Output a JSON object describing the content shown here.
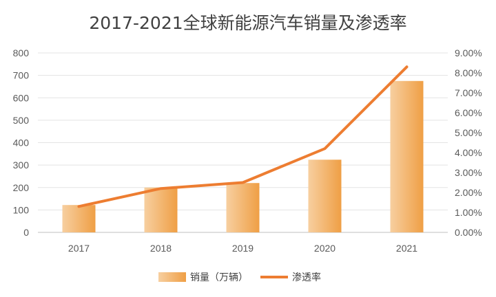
{
  "chart_data": {
    "type": "bar",
    "title": "2017-2021全球新能源汽车销量及渗透率",
    "categories": [
      "2017",
      "2018",
      "2019",
      "2020",
      "2021"
    ],
    "series": [
      {
        "name": "销量（万辆）",
        "type": "bar",
        "axis": "left",
        "values": [
          122,
          200,
          220,
          324,
          675
        ],
        "color": "#f0a857"
      },
      {
        "name": "渗透率",
        "type": "line",
        "axis": "right",
        "values": [
          1.3,
          2.2,
          2.5,
          4.2,
          8.3
        ],
        "color": "#ed7d31"
      }
    ],
    "y_left": {
      "min": 0,
      "max": 800,
      "ticks": [
        "0",
        "100",
        "200",
        "300",
        "400",
        "500",
        "600",
        "700",
        "800"
      ]
    },
    "y_right": {
      "min": 0,
      "max": 9,
      "unit": "%",
      "ticks": [
        "0.00%",
        "1.00%",
        "2.00%",
        "3.00%",
        "4.00%",
        "5.00%",
        "6.00%",
        "7.00%",
        "8.00%",
        "9.00%"
      ]
    },
    "grid": true,
    "legend": "bottom"
  }
}
